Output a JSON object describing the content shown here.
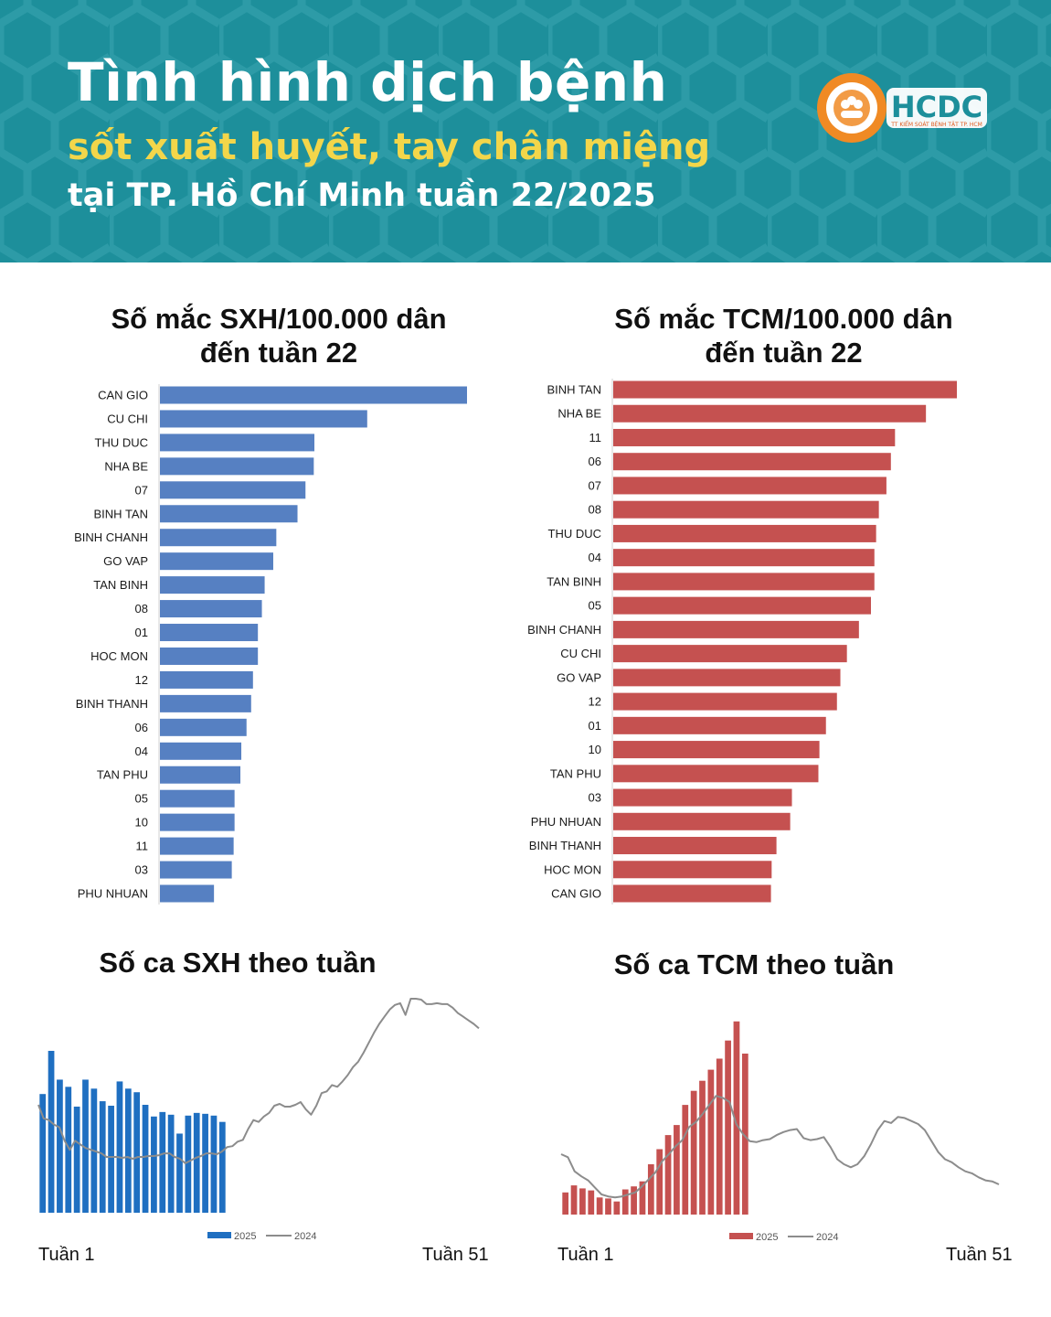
{
  "header": {
    "line1": "Tình hình dịch bệnh",
    "line2": "sốt xuất huyết, tay chân miệng",
    "line3": "tại TP. Hồ Chí Minh tuần 22/2025",
    "logo_text": "HCDC",
    "logo_subtext": "TT KIỂM SOÁT BỆNH TẬT TP. HCM"
  },
  "colors": {
    "header_bg": "#1d8f9b",
    "accent_yellow": "#f3d64a",
    "sxh_blue": "#5680c2",
    "sxh_weekly_blue": "#1f6fc1",
    "tcm_red": "#c55150",
    "line_2024": "#8c8c8c",
    "logo_orange": "#f08a24"
  },
  "chart_data": [
    {
      "type": "bar",
      "orientation": "horizontal",
      "title": "Số mắc SXH/100.000 dân đến tuần 22",
      "categories": [
        "CAN GIO",
        "CU CHI",
        "THU DUC",
        "NHA BE",
        "07",
        "BINH TAN",
        "BINH CHANH",
        "GO VAP",
        "TAN BINH",
        "08",
        "01",
        "HOC MON",
        "12",
        "BINH THANH",
        "06",
        "04",
        "TAN PHU",
        "05",
        "10",
        "11",
        "03",
        "PHU NHUAN"
      ],
      "values": [
        100,
        67.5,
        50.3,
        50.1,
        47.4,
        44.8,
        37.9,
        36.9,
        34.1,
        33.2,
        31.9,
        31.9,
        30.3,
        29.7,
        28.2,
        26.5,
        26.2,
        24.3,
        24.3,
        24.0,
        23.4,
        17.6
      ],
      "xlim": [
        0,
        100
      ]
    },
    {
      "type": "bar",
      "orientation": "horizontal",
      "title": "Số mắc TCM/100.000 dân đến tuần 22",
      "categories": [
        "BINH TAN",
        "NHA BE",
        "11",
        "06",
        "07",
        "08",
        "THU DUC",
        "04",
        "TAN BINH",
        "05",
        "BINH CHANH",
        "CU CHI",
        "GO VAP",
        "12",
        "01",
        "10",
        "TAN PHU",
        "03",
        "PHU NHUAN",
        "BINH THANH",
        "HOC MON",
        "CAN GIO"
      ],
      "values": [
        100,
        91,
        82,
        80.8,
        79.5,
        77.3,
        76.5,
        76.0,
        76.0,
        75.0,
        71.5,
        68.0,
        66.1,
        65.1,
        61.9,
        60.0,
        59.7,
        52.0,
        51.5,
        47.5,
        46.1,
        45.9
      ],
      "xlim": [
        0,
        100
      ]
    },
    {
      "type": "bar+line",
      "title": "Số ca SXH theo tuần",
      "x_start_label": "Tuần 1",
      "x_end_label": "Tuần 51",
      "series": [
        {
          "name": "2025",
          "type": "bar",
          "values": [
            132,
            180,
            148,
            140,
            118,
            148,
            138,
            124,
            119,
            146,
            138,
            134,
            120,
            107,
            112,
            109,
            88,
            108,
            111,
            110,
            108,
            101
          ]
        },
        {
          "name": "2024",
          "type": "line",
          "values": [
            120,
            105,
            103,
            98,
            95,
            80,
            70,
            80,
            76,
            72,
            70,
            68,
            66,
            62,
            62,
            62,
            61,
            62,
            60,
            62,
            62,
            63,
            63,
            64,
            66,
            66,
            62,
            60,
            55,
            58,
            61,
            63,
            66,
            66,
            65,
            68,
            73,
            74,
            79,
            81,
            93,
            103,
            101,
            107,
            111,
            119,
            121,
            118,
            118,
            120,
            123,
            115,
            109,
            119,
            133,
            135,
            142,
            140,
            146,
            153,
            162,
            168,
            178,
            189,
            200,
            210,
            218,
            226,
            231,
            233,
            220,
            238,
            238,
            237,
            232,
            232,
            233,
            232,
            232,
            228,
            222,
            218,
            214,
            210,
            205
          ]
        }
      ],
      "ylim": [
        0,
        240
      ]
    },
    {
      "type": "bar+line",
      "title": "Số ca TCM theo tuần",
      "x_start_label": "Tuần 1",
      "x_end_label": "Tuần 51",
      "series": [
        {
          "name": "2025",
          "type": "bar",
          "values": [
            22,
            29,
            26,
            24,
            17,
            16,
            13,
            25,
            28,
            33,
            50,
            65,
            79,
            89,
            109,
            123,
            133,
            144,
            155,
            173,
            192,
            160
          ]
        },
        {
          "name": "2024",
          "type": "line",
          "values": [
            60,
            57,
            43,
            38,
            34,
            27,
            20,
            18,
            17,
            18,
            20,
            22,
            28,
            35,
            42,
            53,
            60,
            68,
            74,
            87,
            92,
            100,
            109,
            118,
            116,
            112,
            90,
            80,
            73,
            72,
            74,
            75,
            79,
            82,
            84,
            85,
            76,
            74,
            75,
            77,
            67,
            55,
            50,
            47,
            50,
            58,
            70,
            84,
            93,
            91,
            97,
            96,
            93,
            90,
            84,
            73,
            62,
            55,
            52,
            47,
            43,
            41,
            37,
            34,
            33,
            30
          ]
        }
      ],
      "ylim": [
        0,
        200
      ]
    }
  ]
}
